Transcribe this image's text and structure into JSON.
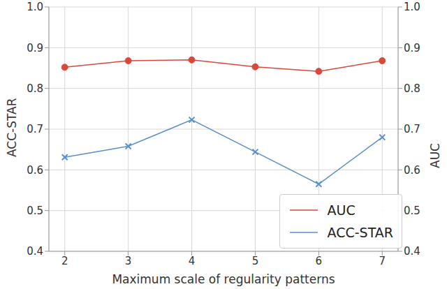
{
  "chart_data": {
    "type": "line",
    "x_label": "Maximum scale of regularity patterns",
    "y_label": "ACC-STAR",
    "y2_label": "AUC",
    "x": [
      2,
      3,
      4,
      5,
      6,
      7
    ],
    "xlim": [
      1.75,
      7.25
    ],
    "xticks": [
      2,
      3,
      4,
      5,
      6,
      7
    ],
    "ylim": [
      0.4,
      1.0
    ],
    "yticks": [
      0.4,
      0.5,
      0.6,
      0.7,
      0.8,
      0.9,
      {
        "value": 1.0,
        "label": "1.0"
      }
    ],
    "y2lim": [
      0.4,
      1.0
    ],
    "y2ticks": [
      0.4,
      0.5,
      0.6,
      0.7,
      0.8,
      0.9,
      {
        "value": 1.0,
        "label": "1.0"
      }
    ],
    "grid": true,
    "legend": "lower right",
    "series": [
      {
        "name": "AUC",
        "color": "#d9493a",
        "marker": "circle",
        "axis": "y2",
        "values": [
          0.852,
          0.868,
          0.87,
          0.853,
          0.842,
          0.868
        ]
      },
      {
        "name": "ACC-STAR",
        "color": "#5a8fc8",
        "marker": "x",
        "values": [
          0.631,
          0.658,
          0.723,
          0.644,
          0.565,
          0.68
        ]
      }
    ]
  }
}
